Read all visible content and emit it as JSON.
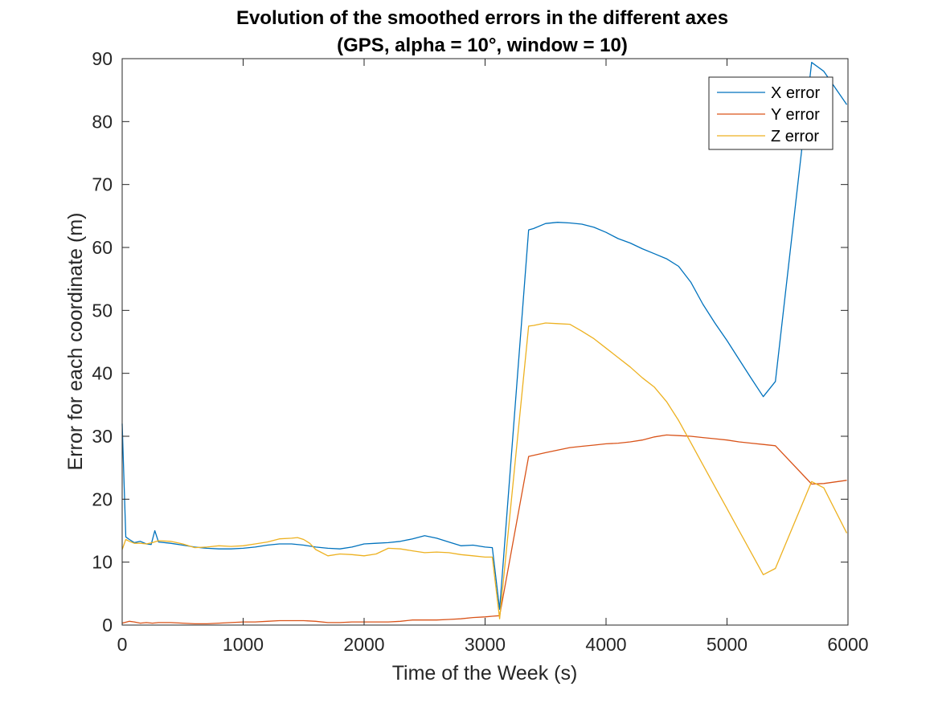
{
  "chart_data": {
    "type": "line",
    "title": "Evolution of the smoothed errors in the different axes",
    "subtitle": "(GPS, alpha = 10°, window = 10)",
    "xlabel": "Time of the Week (s)",
    "ylabel": "Error for each coordinate (m)",
    "xlim": [
      0,
      6000
    ],
    "ylim": [
      0,
      90
    ],
    "xticks": [
      0,
      1000,
      2000,
      3000,
      4000,
      5000,
      6000
    ],
    "yticks": [
      0,
      10,
      20,
      30,
      40,
      50,
      60,
      70,
      80,
      90
    ],
    "grid": false,
    "legend_position": "top-right",
    "series": [
      {
        "name": "X error",
        "color": "#0072BD",
        "x": [
          0,
          30,
          60,
          100,
          150,
          200,
          240,
          270,
          300,
          400,
          500,
          600,
          700,
          800,
          900,
          1000,
          1100,
          1200,
          1300,
          1400,
          1500,
          1600,
          1700,
          1800,
          1900,
          2000,
          2100,
          2200,
          2300,
          2400,
          2500,
          2600,
          2700,
          2800,
          2900,
          3000,
          3060,
          3120,
          3360,
          3400,
          3500,
          3600,
          3700,
          3800,
          3900,
          4000,
          4100,
          4200,
          4300,
          4400,
          4500,
          4600,
          4700,
          4800,
          4900,
          5000,
          5100,
          5200,
          5300,
          5400,
          5700,
          5800,
          5990
        ],
        "values": [
          32,
          14,
          13.6,
          13.1,
          13.3,
          12.9,
          12.8,
          15.0,
          13.2,
          13.0,
          12.7,
          12.4,
          12.2,
          12.1,
          12.1,
          12.2,
          12.4,
          12.7,
          12.9,
          12.9,
          12.7,
          12.4,
          12.2,
          12.1,
          12.4,
          12.9,
          13.0,
          13.1,
          13.3,
          13.7,
          14.2,
          13.8,
          13.2,
          12.6,
          12.7,
          12.4,
          12.3,
          2.5,
          62.8,
          63.0,
          63.8,
          64.0,
          63.9,
          63.7,
          63.2,
          62.4,
          61.4,
          60.7,
          59.8,
          59.0,
          58.2,
          57.0,
          54.5,
          51.0,
          48.0,
          45.2,
          42.2,
          39.2,
          36.3,
          38.7,
          89.4,
          88.0,
          82.7
        ]
      },
      {
        "name": "Y error",
        "color": "#D95319",
        "x": [
          0,
          60,
          100,
          150,
          200,
          250,
          300,
          400,
          500,
          600,
          700,
          800,
          900,
          1000,
          1100,
          1200,
          1300,
          1400,
          1500,
          1600,
          1700,
          1800,
          1900,
          2000,
          2100,
          2200,
          2300,
          2400,
          2500,
          2600,
          2700,
          2800,
          2900,
          3000,
          3060,
          3120,
          3360,
          3500,
          3600,
          3700,
          3800,
          3900,
          4000,
          4100,
          4200,
          4300,
          4400,
          4500,
          4600,
          4700,
          4800,
          4900,
          5000,
          5100,
          5200,
          5300,
          5400,
          5700,
          5800,
          5990
        ],
        "values": [
          0.3,
          0.6,
          0.5,
          0.3,
          0.4,
          0.3,
          0.4,
          0.4,
          0.3,
          0.2,
          0.2,
          0.3,
          0.4,
          0.5,
          0.5,
          0.6,
          0.7,
          0.7,
          0.7,
          0.6,
          0.4,
          0.4,
          0.5,
          0.5,
          0.5,
          0.5,
          0.6,
          0.8,
          0.8,
          0.8,
          0.9,
          1.0,
          1.2,
          1.3,
          1.4,
          1.5,
          26.8,
          27.4,
          27.8,
          28.2,
          28.4,
          28.6,
          28.8,
          28.9,
          29.1,
          29.4,
          29.9,
          30.2,
          30.1,
          30.0,
          29.8,
          29.6,
          29.4,
          29.1,
          28.9,
          28.7,
          28.5,
          22.4,
          22.5,
          23.0
        ]
      },
      {
        "name": "Z error",
        "color": "#EDB120",
        "x": [
          0,
          30,
          60,
          100,
          150,
          200,
          250,
          300,
          400,
          500,
          600,
          700,
          800,
          900,
          1000,
          1100,
          1200,
          1300,
          1400,
          1450,
          1500,
          1550,
          1600,
          1700,
          1800,
          1900,
          2000,
          2100,
          2200,
          2300,
          2400,
          2500,
          2600,
          2700,
          2800,
          2900,
          3000,
          3060,
          3120,
          3360,
          3400,
          3500,
          3600,
          3700,
          3800,
          3900,
          4000,
          4100,
          4200,
          4300,
          4400,
          4500,
          4600,
          4700,
          4800,
          4900,
          5000,
          5100,
          5200,
          5300,
          5400,
          5700,
          5800,
          5990
        ],
        "values": [
          12.0,
          13.6,
          13.3,
          13.0,
          13.0,
          12.9,
          13.1,
          13.4,
          13.3,
          12.9,
          12.3,
          12.4,
          12.6,
          12.5,
          12.6,
          12.9,
          13.2,
          13.7,
          13.8,
          13.9,
          13.6,
          13.0,
          12.0,
          11.0,
          11.3,
          11.2,
          11.0,
          11.3,
          12.2,
          12.1,
          11.8,
          11.5,
          11.6,
          11.5,
          11.2,
          11.0,
          10.8,
          10.8,
          1.0,
          47.5,
          47.6,
          48.0,
          47.9,
          47.8,
          46.7,
          45.5,
          44.0,
          42.5,
          41.0,
          39.3,
          37.8,
          35.5,
          32.5,
          29.0,
          25.5,
          22.0,
          18.5,
          15.0,
          11.5,
          8.0,
          9.0,
          22.8,
          21.8,
          14.6
        ]
      }
    ]
  }
}
